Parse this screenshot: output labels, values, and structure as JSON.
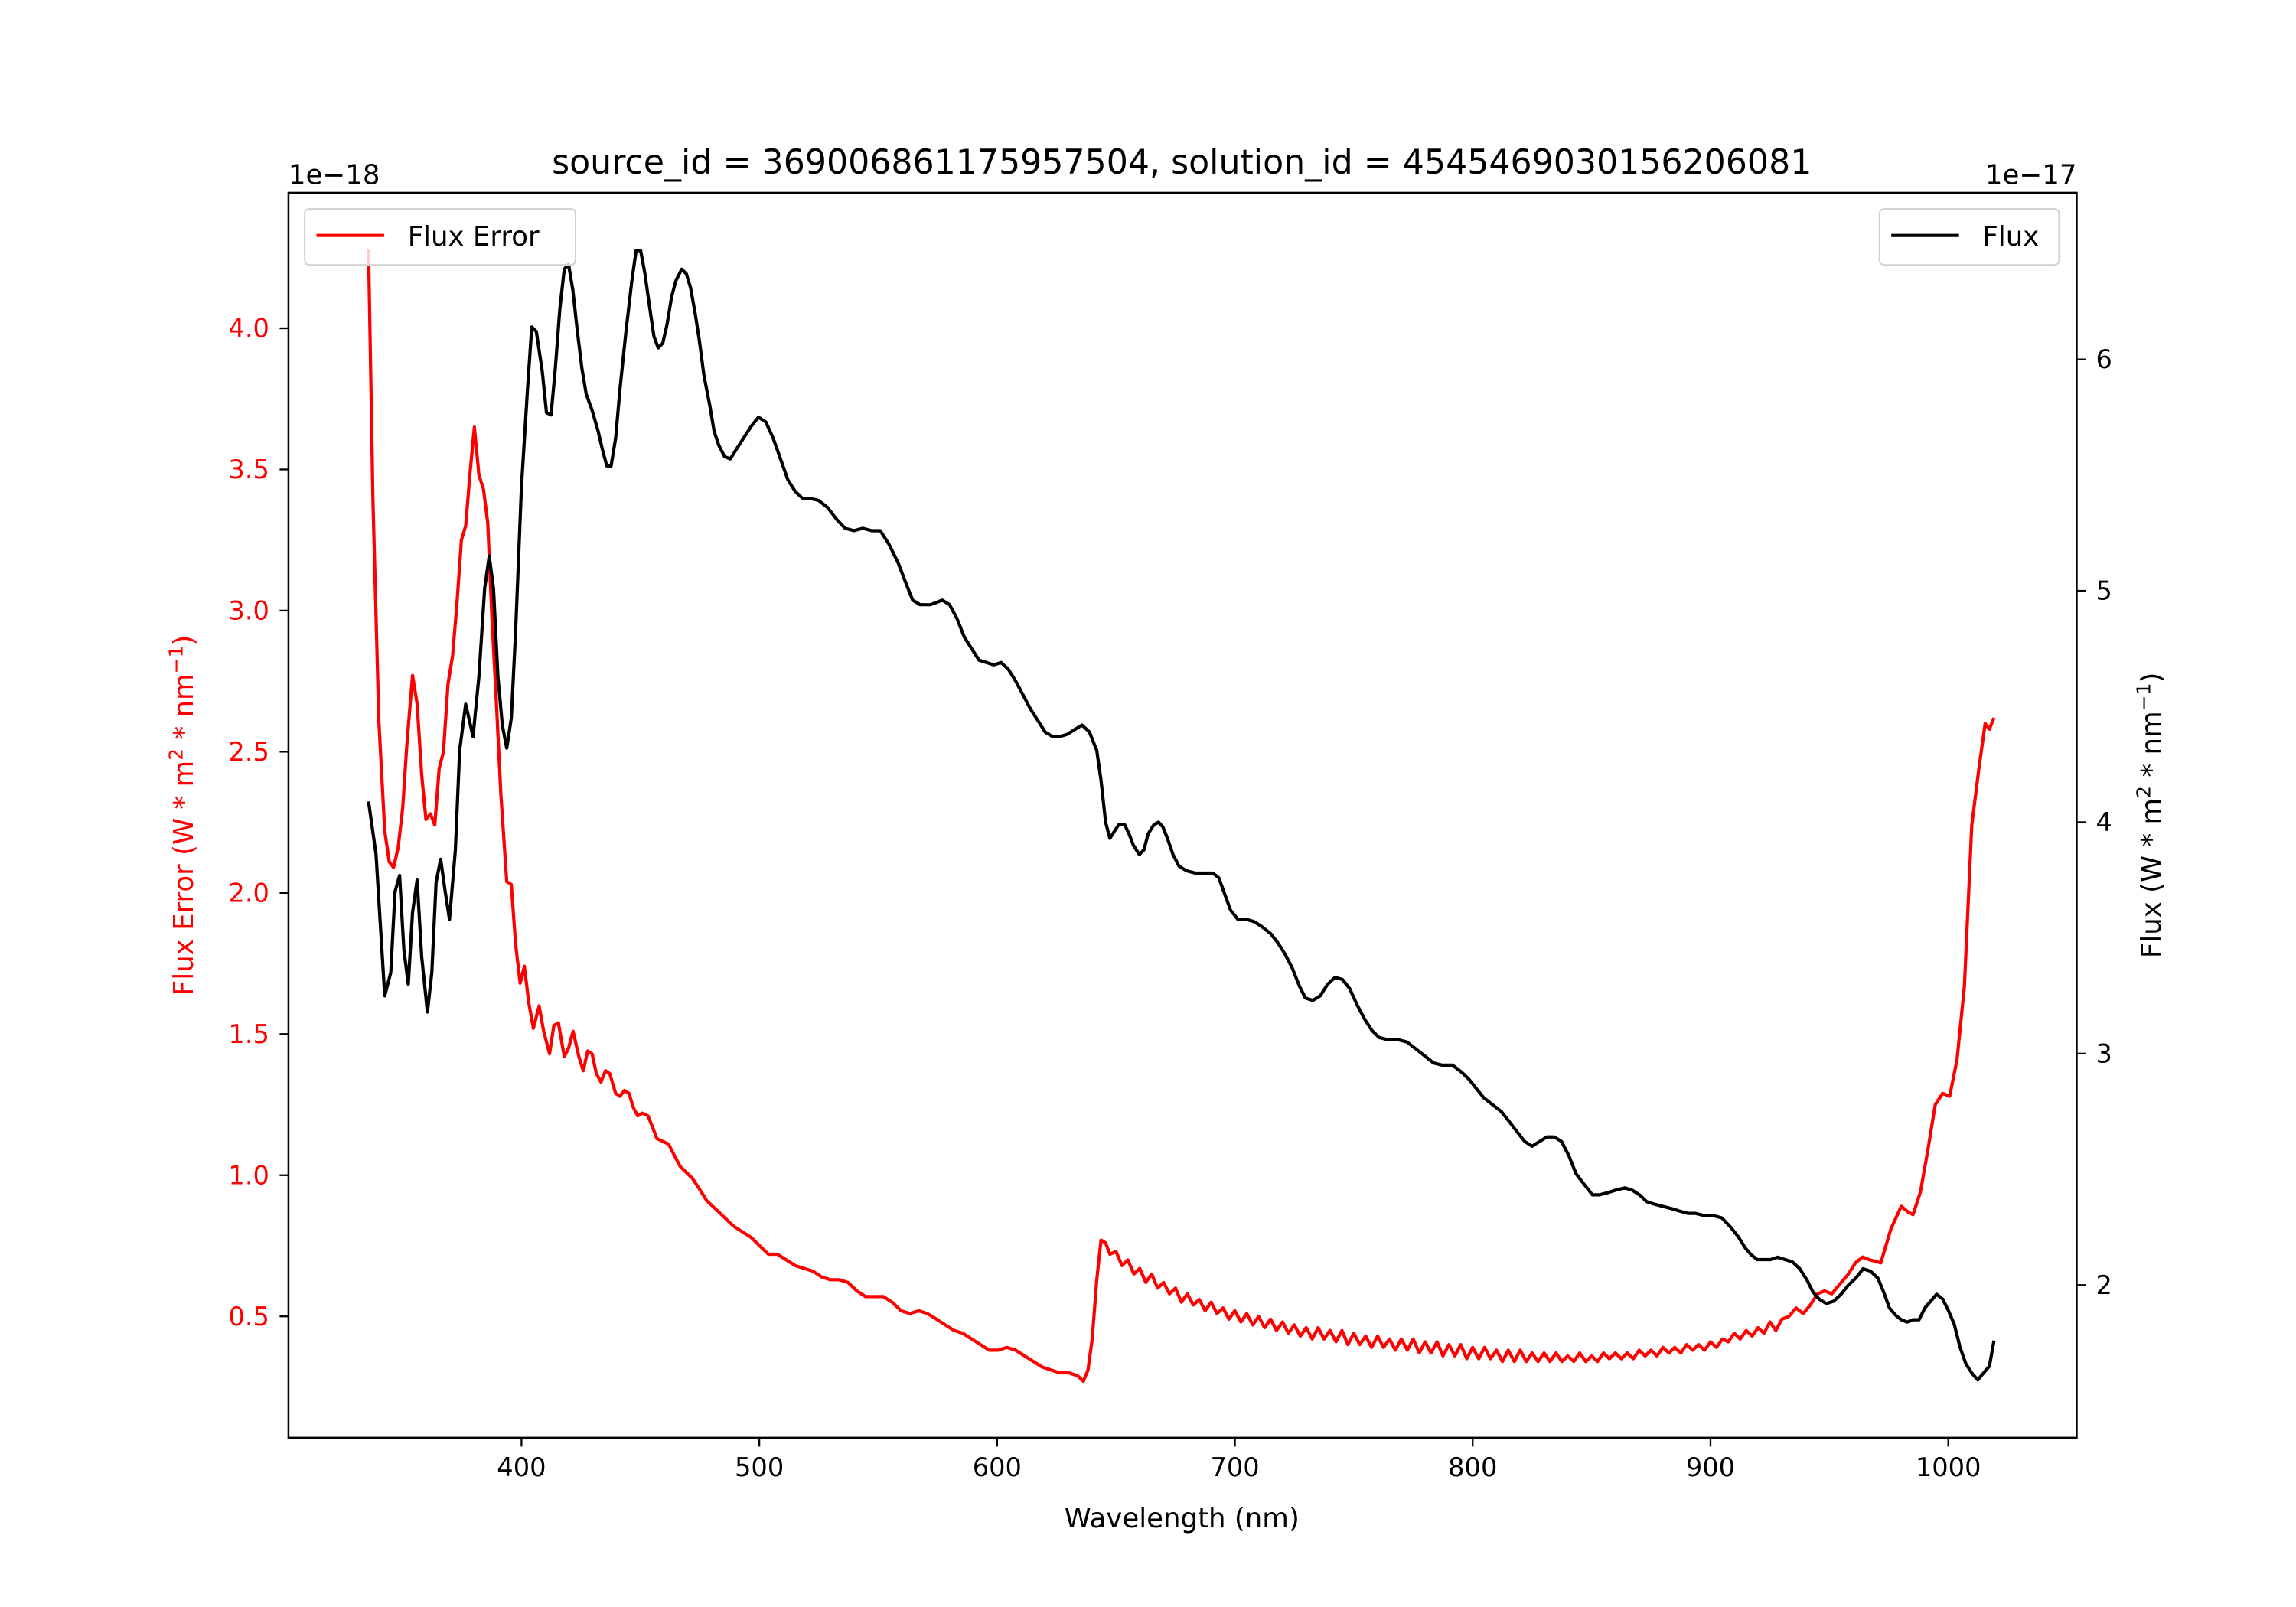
{
  "chart_data": {
    "type": "line",
    "title": "source_id = 369006861175957504, solution_id = 4545469030156206081",
    "xlabel": "Wavelength (nm)",
    "xlim": [
      302,
      1054
    ],
    "x_ticks": [
      400,
      500,
      600,
      700,
      800,
      900,
      1000
    ],
    "left_axis": {
      "label_parts": [
        "Flux Error (W * m",
        "2",
        " * nm",
        "−1",
        ")"
      ],
      "offset_text": "1e−18",
      "ylim": [
        0.07,
        4.48
      ],
      "ticks": [
        "0.5",
        "1.0",
        "1.5",
        "2.0",
        "2.5",
        "3.0",
        "3.5",
        "4.0"
      ],
      "color": "#ff0000"
    },
    "right_axis": {
      "label_parts": [
        "Flux (W * m",
        "2",
        " * nm",
        "−1",
        ")"
      ],
      "offset_text": "1e−17",
      "ylim": [
        1.34,
        6.72
      ],
      "ticks": [
        "2",
        "3",
        "4",
        "5",
        "6"
      ],
      "color": "#000000"
    },
    "legend_left": {
      "placement": "upper-left",
      "label": "Flux Error"
    },
    "legend_right": {
      "placement": "upper-right",
      "label": "Flux"
    },
    "series": [
      {
        "name": "Flux Error",
        "axis": "left",
        "color": "#ff0000",
        "x": [
          335.7,
          337.5,
          340,
          342.5,
          344.4,
          346.2,
          348.1,
          350,
          351.8,
          354.2,
          356.1,
          358,
          359.8,
          361.7,
          363.5,
          365.4,
          367.2,
          369.1,
          371,
          372.8,
          374.7,
          376.5,
          378.4,
          380.2,
          382.1,
          384,
          385.8,
          387.6,
          389.5,
          391.3,
          393.8,
          395.7,
          397.5,
          399.4,
          401.2,
          403.1,
          405,
          407.4,
          409.3,
          411.8,
          413.6,
          415.5,
          418,
          419.8,
          421.7,
          424.1,
          426,
          427.8,
          429.7,
          431.5,
          433.4,
          435.3,
          437.1,
          439.6,
          441.4,
          443.3,
          445.2,
          447,
          448.9,
          450.7,
          453.2,
          455.1,
          456.9,
          459.4,
          461.9,
          464.3,
          466.8,
          469.3,
          471.8,
          474.9,
          477.9,
          481.7,
          485.4,
          489.1,
          492.8,
          496.5,
          500.2,
          503.9,
          507.6,
          511.3,
          515.1,
          518.8,
          522.5,
          526.2,
          529.9,
          533.6,
          537.3,
          541,
          544.7,
          548.5,
          552.2,
          555.9,
          559.6,
          563.3,
          567,
          570.7,
          574.5,
          578.2,
          581.9,
          585.6,
          589.3,
          593,
          596.7,
          600.4,
          604.1,
          607.8,
          611.6,
          615.3,
          619,
          622.7,
          626.4,
          630.1,
          633.8,
          636.3,
          638.2,
          640,
          641.9,
          643.7,
          645.6,
          647.4,
          650,
          652.5,
          655,
          657.5,
          660,
          662.5,
          665,
          667.5,
          670,
          672.5,
          675,
          677.5,
          680,
          682.5,
          685,
          687.5,
          690,
          692.5,
          695,
          697.5,
          700,
          702.5,
          705,
          707.5,
          710,
          712.5,
          715,
          717.5,
          720,
          722.5,
          725,
          727.5,
          730,
          732.5,
          735,
          737.5,
          740,
          742.5,
          745,
          747.5,
          750,
          752.5,
          755,
          757.5,
          760,
          762.5,
          765,
          767.5,
          770,
          772.5,
          775,
          777.5,
          780,
          782.5,
          785,
          787.5,
          790,
          792.5,
          795,
          797.5,
          800,
          802.5,
          805,
          807.5,
          810,
          812.5,
          815,
          817.5,
          820,
          822.5,
          825,
          827.5,
          830,
          832.5,
          835,
          837.5,
          840,
          842.5,
          845,
          847.5,
          850,
          852.5,
          855,
          857.5,
          860,
          862.5,
          865,
          867.5,
          870,
          872.5,
          875,
          877.5,
          880,
          882.5,
          885,
          887.5,
          890,
          892.5,
          895,
          897.5,
          900,
          902.5,
          905,
          907.5,
          910,
          912.5,
          915,
          917.5,
          920,
          922.5,
          925,
          927.5,
          930,
          933,
          936,
          939,
          942,
          945,
          948,
          951,
          954,
          958,
          961,
          964,
          967,
          971.6,
          975.9,
          980.2,
          983,
          985.2,
          988.3,
          991.4,
          994.5,
          997.6,
          1000.6,
          1003.7,
          1006.8,
          1009.9,
          1013,
          1015.5,
          1017.3,
          1019.2
        ],
        "y": [
          4.28,
          3.39,
          2.61,
          2.22,
          2.11,
          2.09,
          2.16,
          2.3,
          2.53,
          2.77,
          2.67,
          2.42,
          2.26,
          2.28,
          2.24,
          2.44,
          2.5,
          2.74,
          2.84,
          3.02,
          3.25,
          3.3,
          3.49,
          3.65,
          3.48,
          3.43,
          3.31,
          2.97,
          2.66,
          2.35,
          2.04,
          2.03,
          1.82,
          1.68,
          1.74,
          1.61,
          1.52,
          1.6,
          1.51,
          1.43,
          1.53,
          1.54,
          1.42,
          1.45,
          1.51,
          1.42,
          1.37,
          1.44,
          1.43,
          1.36,
          1.33,
          1.37,
          1.36,
          1.29,
          1.28,
          1.3,
          1.29,
          1.24,
          1.21,
          1.22,
          1.21,
          1.17,
          1.13,
          1.12,
          1.11,
          1.07,
          1.03,
          1.01,
          0.99,
          0.95,
          0.91,
          0.88,
          0.85,
          0.82,
          0.8,
          0.78,
          0.75,
          0.72,
          0.72,
          0.7,
          0.68,
          0.67,
          0.66,
          0.64,
          0.63,
          0.63,
          0.62,
          0.59,
          0.57,
          0.57,
          0.57,
          0.55,
          0.52,
          0.51,
          0.52,
          0.51,
          0.49,
          0.47,
          0.45,
          0.44,
          0.42,
          0.4,
          0.38,
          0.38,
          0.39,
          0.38,
          0.36,
          0.34,
          0.32,
          0.31,
          0.3,
          0.3,
          0.29,
          0.27,
          0.31,
          0.42,
          0.63,
          0.77,
          0.76,
          0.72,
          0.73,
          0.68,
          0.7,
          0.65,
          0.67,
          0.62,
          0.65,
          0.6,
          0.62,
          0.58,
          0.6,
          0.55,
          0.58,
          0.54,
          0.56,
          0.52,
          0.55,
          0.51,
          0.53,
          0.49,
          0.52,
          0.48,
          0.51,
          0.47,
          0.5,
          0.46,
          0.49,
          0.45,
          0.48,
          0.44,
          0.47,
          0.43,
          0.46,
          0.42,
          0.46,
          0.42,
          0.45,
          0.41,
          0.45,
          0.4,
          0.44,
          0.4,
          0.43,
          0.39,
          0.43,
          0.39,
          0.42,
          0.38,
          0.42,
          0.38,
          0.42,
          0.37,
          0.41,
          0.37,
          0.41,
          0.36,
          0.4,
          0.36,
          0.4,
          0.35,
          0.39,
          0.35,
          0.39,
          0.35,
          0.38,
          0.34,
          0.38,
          0.34,
          0.38,
          0.34,
          0.37,
          0.34,
          0.37,
          0.34,
          0.37,
          0.34,
          0.36,
          0.34,
          0.37,
          0.34,
          0.36,
          0.34,
          0.37,
          0.35,
          0.37,
          0.35,
          0.37,
          0.35,
          0.38,
          0.36,
          0.38,
          0.36,
          0.39,
          0.37,
          0.39,
          0.37,
          0.4,
          0.38,
          0.4,
          0.38,
          0.41,
          0.39,
          0.42,
          0.41,
          0.44,
          0.42,
          0.45,
          0.43,
          0.46,
          0.44,
          0.48,
          0.45,
          0.49,
          0.5,
          0.53,
          0.51,
          0.54,
          0.58,
          0.59,
          0.58,
          0.61,
          0.65,
          0.69,
          0.71,
          0.7,
          0.69,
          0.81,
          0.89,
          0.87,
          0.86,
          0.94,
          1.09,
          1.25,
          1.29,
          1.28,
          1.41,
          1.67,
          2.24,
          2.45,
          2.6,
          2.58,
          2.62
        ]
      },
      {
        "name": "Flux",
        "axis": "right",
        "color": "#000000",
        "x": [
          335.7,
          338.8,
          342.5,
          345,
          346.8,
          348.7,
          350.5,
          352.4,
          354.2,
          356.1,
          358,
          360.4,
          362.3,
          364.1,
          366,
          367.9,
          369.7,
          372.2,
          374,
          376.5,
          379.6,
          382.1,
          384.5,
          386.4,
          388.2,
          390.1,
          391.9,
          393.8,
          395.7,
          397.5,
          400,
          402.5,
          404.3,
          406.2,
          408.7,
          410.5,
          412.4,
          414.2,
          416.1,
          418,
          419.8,
          421.6,
          423.5,
          425.4,
          427.2,
          429.7,
          432.2,
          434,
          435.9,
          437.7,
          439.6,
          441.4,
          443.9,
          446.4,
          448.2,
          450.1,
          451.9,
          453.8,
          455.7,
          457.5,
          459.4,
          461.2,
          463.1,
          464.9,
          467.4,
          469.3,
          471.1,
          473,
          474.8,
          476.7,
          479.2,
          481,
          482.9,
          485.4,
          487.8,
          490.3,
          493.4,
          496.5,
          499.6,
          502.7,
          505.8,
          508.9,
          512,
          515.1,
          518.1,
          521.2,
          525,
          528.7,
          532.4,
          536.1,
          539.8,
          543.5,
          547.2,
          550.9,
          554.6,
          558.4,
          561.4,
          564.5,
          567.6,
          572,
          576.9,
          580,
          583.1,
          586.2,
          589.3,
          592.4,
          595.5,
          598.6,
          601.7,
          604.8,
          607.8,
          610.9,
          614,
          617.1,
          620.2,
          623.3,
          626.4,
          629.5,
          632.6,
          635.7,
          638.8,
          641.9,
          643.7,
          645.6,
          647.4,
          649.3,
          651.2,
          653.6,
          655.5,
          657.3,
          659.8,
          661.7,
          663.5,
          666,
          667.9,
          669.7,
          671.6,
          674,
          676.5,
          679.6,
          683.3,
          687,
          690.7,
          693.2,
          695.7,
          698.2,
          701.3,
          705,
          708.1,
          711.2,
          714.9,
          718,
          721.1,
          724.1,
          727.2,
          729.7,
          732.8,
          735.9,
          739,
          742.1,
          745.2,
          748.3,
          751.4,
          754.5,
          757.6,
          760.6,
          764.4,
          768.7,
          772.4,
          776.1,
          779.8,
          783.5,
          787.2,
          791.6,
          795.3,
          798.4,
          801.5,
          804.6,
          808.3,
          812,
          815.1,
          818.8,
          821.9,
          825,
          828.1,
          831.2,
          834.3,
          837.4,
          840.4,
          843.5,
          847.3,
          850.3,
          853.4,
          857.1,
          860.2,
          863.9,
          867,
          870.1,
          873.2,
          876.3,
          880,
          883.7,
          886.8,
          890.5,
          893.6,
          897.3,
          901.1,
          904.8,
          908.5,
          911.6,
          914.7,
          917.2,
          919.6,
          922.1,
          925.2,
          928.3,
          931.4,
          934.5,
          937.6,
          940.7,
          943.1,
          945.6,
          948.7,
          951.8,
          954.9,
          958,
          961.1,
          964.2,
          967.3,
          970.4,
          972.8,
          975.3,
          977.8,
          980.2,
          982.7,
          985.2,
          987.7,
          990.1,
          992.6,
          995.1,
          997.6,
          1000,
          1002.5,
          1005,
          1007.4,
          1009.9,
          1012.4,
          1014.8,
          1017.3,
          1019.2
        ],
        "y": [
          4.09,
          3.86,
          3.25,
          3.35,
          3.7,
          3.77,
          3.45,
          3.3,
          3.61,
          3.75,
          3.42,
          3.18,
          3.35,
          3.74,
          3.84,
          3.7,
          3.58,
          3.88,
          4.31,
          4.51,
          4.37,
          4.63,
          5.01,
          5.15,
          5.01,
          4.63,
          4.42,
          4.32,
          4.45,
          4.82,
          5.45,
          5.87,
          6.14,
          6.12,
          5.95,
          5.77,
          5.76,
          5.96,
          6.22,
          6.39,
          6.41,
          6.3,
          6.12,
          5.96,
          5.85,
          5.78,
          5.69,
          5.61,
          5.54,
          5.54,
          5.66,
          5.87,
          6.12,
          6.34,
          6.47,
          6.47,
          6.37,
          6.23,
          6.1,
          6.05,
          6.07,
          6.15,
          6.27,
          6.34,
          6.39,
          6.37,
          6.31,
          6.2,
          6.08,
          5.93,
          5.8,
          5.69,
          5.63,
          5.58,
          5.57,
          5.61,
          5.66,
          5.71,
          5.75,
          5.73,
          5.66,
          5.57,
          5.48,
          5.43,
          5.4,
          5.4,
          5.39,
          5.36,
          5.31,
          5.27,
          5.26,
          5.27,
          5.26,
          5.26,
          5.2,
          5.12,
          5.04,
          4.96,
          4.94,
          4.94,
          4.96,
          4.94,
          4.88,
          4.8,
          4.75,
          4.7,
          4.69,
          4.68,
          4.69,
          4.66,
          4.61,
          4.55,
          4.49,
          4.44,
          4.39,
          4.37,
          4.37,
          4.38,
          4.4,
          4.42,
          4.39,
          4.31,
          4.18,
          4.0,
          3.93,
          3.96,
          3.99,
          3.99,
          3.95,
          3.9,
          3.86,
          3.88,
          3.95,
          3.99,
          4.0,
          3.98,
          3.93,
          3.86,
          3.81,
          3.79,
          3.78,
          3.78,
          3.78,
          3.76,
          3.69,
          3.62,
          3.58,
          3.58,
          3.57,
          3.55,
          3.52,
          3.48,
          3.43,
          3.37,
          3.29,
          3.24,
          3.23,
          3.25,
          3.3,
          3.33,
          3.32,
          3.28,
          3.21,
          3.15,
          3.1,
          3.07,
          3.06,
          3.06,
          3.05,
          3.02,
          2.99,
          2.96,
          2.95,
          2.95,
          2.92,
          2.89,
          2.85,
          2.81,
          2.78,
          2.75,
          2.71,
          2.66,
          2.62,
          2.6,
          2.62,
          2.64,
          2.64,
          2.62,
          2.56,
          2.48,
          2.43,
          2.39,
          2.39,
          2.4,
          2.41,
          2.42,
          2.41,
          2.39,
          2.36,
          2.35,
          2.34,
          2.33,
          2.32,
          2.31,
          2.31,
          2.3,
          2.3,
          2.29,
          2.25,
          2.21,
          2.16,
          2.13,
          2.11,
          2.11,
          2.11,
          2.12,
          2.11,
          2.1,
          2.07,
          2.02,
          1.97,
          1.94,
          1.92,
          1.93,
          1.96,
          2.0,
          2.03,
          2.07,
          2.06,
          2.03,
          1.97,
          1.9,
          1.87,
          1.85,
          1.84,
          1.85,
          1.85,
          1.9,
          1.93,
          1.96,
          1.94,
          1.89,
          1.83,
          1.73,
          1.66,
          1.62,
          1.59,
          1.62,
          1.65,
          1.76
        ]
      }
    ]
  }
}
